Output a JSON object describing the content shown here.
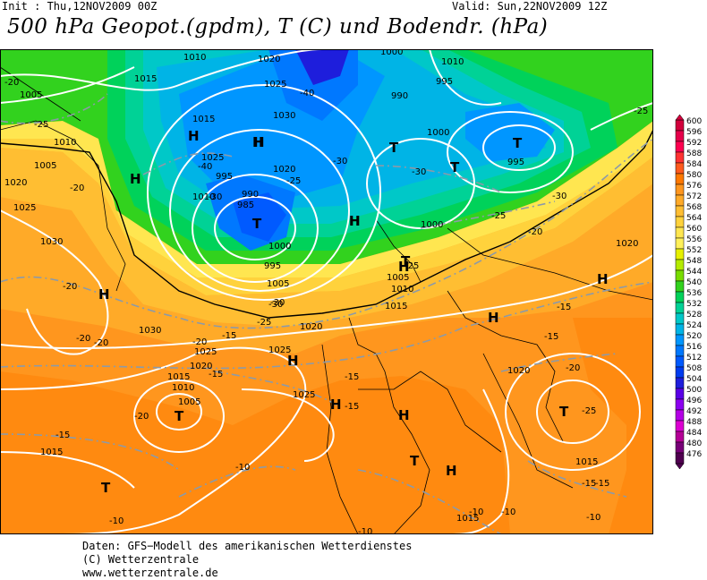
{
  "header": {
    "init": "Init : Thu,12NOV2009 00Z",
    "valid": "Valid: Sun,22NOV2009 12Z",
    "title": "500 hPa Geopot.(gpdm), T (C) und Bodendr. (hPa)"
  },
  "footer": {
    "line1": "Daten: GFS−Modell des amerikanischen Wetterdienstes",
    "line2": "(C) Wetterzentrale",
    "line3": "www.wetterzentrale.de"
  },
  "colorbar": {
    "labels": [
      "600",
      "596",
      "592",
      "588",
      "584",
      "580",
      "576",
      "572",
      "568",
      "564",
      "560",
      "556",
      "552",
      "548",
      "544",
      "540",
      "536",
      "532",
      "528",
      "524",
      "520",
      "516",
      "512",
      "508",
      "504",
      "500",
      "496",
      "492",
      "488",
      "484",
      "480",
      "476"
    ],
    "colors": [
      "#d2003c",
      "#e6004b",
      "#ff0050",
      "#ff3232",
      "#ff5a1e",
      "#ff7800",
      "#ff961e",
      "#ffaa28",
      "#ffbe32",
      "#ffd23c",
      "#ffe650",
      "#fff05a",
      "#e6f000",
      "#b4eb00",
      "#78dc00",
      "#32d21e",
      "#00d25a",
      "#00d296",
      "#00c8c8",
      "#00b4e6",
      "#0096ff",
      "#0078ff",
      "#005aff",
      "#003cf0",
      "#1e1edc",
      "#5a00e6",
      "#8c00f0",
      "#b400e6",
      "#dc00d2",
      "#b40096",
      "#780078",
      "#500050"
    ]
  },
  "map": {
    "pressure_labels": [
      "1010",
      "1020",
      "1000",
      "1010",
      "1005",
      "1015",
      "1025",
      "995",
      "1010",
      "1030",
      "990",
      "1015",
      "1025",
      "1000",
      "1005",
      "995",
      "1020",
      "995",
      "990",
      "1025",
      "1010",
      "985",
      "1000",
      "1030",
      "995",
      "1020",
      "1000",
      "1005",
      "1005",
      "1010",
      "1015",
      "1020",
      "1030",
      "1020",
      "1025",
      "1025",
      "1015",
      "1020",
      "1010",
      "1005",
      "1025",
      "1015",
      "1015",
      "1020",
      "1015"
    ],
    "temp_labels": [
      "-20",
      "-25",
      "-25",
      "-20",
      "-25",
      "-30",
      "-40",
      "-40",
      "-30",
      "-30",
      "-30",
      "-25",
      "-30",
      "-25",
      "-20",
      "-20",
      "-25",
      "-30",
      "-20",
      "-20",
      "-15",
      "-15",
      "-20",
      "-15",
      "-15",
      "-15",
      "-15",
      "-20",
      "-15",
      "-15",
      "-25",
      "-20",
      "-15",
      "-10",
      "-10",
      "-10",
      "-10",
      "-10",
      "-10"
    ],
    "high_markers": [
      "H",
      "H",
      "H",
      "H",
      "H",
      "H",
      "H",
      "H",
      "H",
      "H",
      "H",
      "H",
      "H",
      "H"
    ],
    "low_markers": [
      "T",
      "T",
      "T",
      "T",
      "T",
      "T",
      "T",
      "T",
      "T"
    ]
  }
}
